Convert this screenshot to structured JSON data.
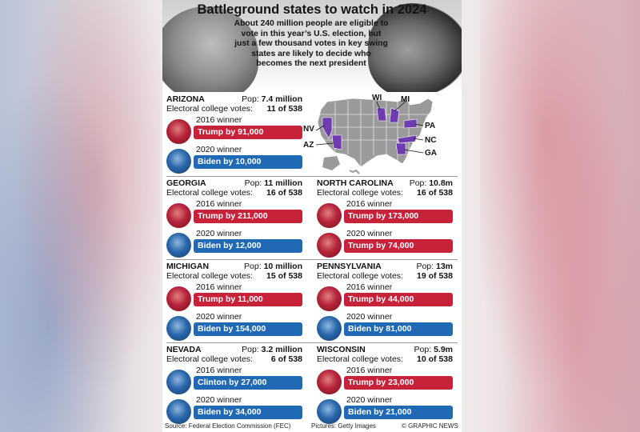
{
  "header": {
    "title": "Battleground states to watch in 2024",
    "subtitle": "About 240 million people are eligible to vote in this year’s U.S. election, but just a few thousand votes in key swing states are likely to decide who becomes the next president"
  },
  "labels": {
    "pop_prefix": "Pop:",
    "ev_label": "Electoral college votes:",
    "winner_2016": "2016 winner",
    "winner_2020": "2020 winner"
  },
  "colors": {
    "republican": "#c8213a",
    "democrat": "#1f69b5",
    "swing": "#6f3bb0"
  },
  "states": [
    {
      "name": "ARIZONA",
      "pop": "7.4 million",
      "ev": "11 of 538",
      "w2016": {
        "text": "Trump by 91,000",
        "party": "red"
      },
      "w2020": {
        "text": "Biden by 10,000",
        "party": "blue"
      }
    },
    {
      "name": "GEORGIA",
      "pop": "11 million",
      "ev": "16 of 538",
      "w2016": {
        "text": "Trump by 211,000",
        "party": "red"
      },
      "w2020": {
        "text": "Biden by 12,000",
        "party": "blue"
      }
    },
    {
      "name": "NORTH CAROLINA",
      "pop": "10.8m",
      "ev": "16 of 538",
      "w2016": {
        "text": "Trump by 173,000",
        "party": "red"
      },
      "w2020": {
        "text": "Trump by 74,000",
        "party": "red"
      }
    },
    {
      "name": "MICHIGAN",
      "pop": "10 million",
      "ev": "15 of 538",
      "w2016": {
        "text": "Trump by 11,000",
        "party": "red"
      },
      "w2020": {
        "text": "Biden by 154,000",
        "party": "blue"
      }
    },
    {
      "name": "PENNSYLVANIA",
      "pop": "13m",
      "ev": "19 of 538",
      "w2016": {
        "text": "Trump by 44,000",
        "party": "red"
      },
      "w2020": {
        "text": "Biden by 81,000",
        "party": "blue"
      }
    },
    {
      "name": "NEVADA",
      "pop": "3.2 million",
      "ev": "6 of 538",
      "w2016": {
        "text": "Clinton by 27,000",
        "party": "blue"
      },
      "w2020": {
        "text": "Biden by 34,000",
        "party": "blue"
      }
    },
    {
      "name": "WISCONSIN",
      "pop": "5.9m",
      "ev": "10 of 538",
      "w2016": {
        "text": "Trump by 23,000",
        "party": "red"
      },
      "w2020": {
        "text": "Biden by 21,000",
        "party": "blue"
      }
    }
  ],
  "map": {
    "labels": {
      "wi": "WI",
      "mi": "MI",
      "pa": "PA",
      "nc": "NC",
      "ga": "GA",
      "nv": "NV",
      "az": "AZ"
    }
  },
  "footer": {
    "source": "Source: Federal Election Commission (FEC)",
    "pictures": "Pictures: Getty Images",
    "credit": "© GRAPHIC NEWS"
  }
}
